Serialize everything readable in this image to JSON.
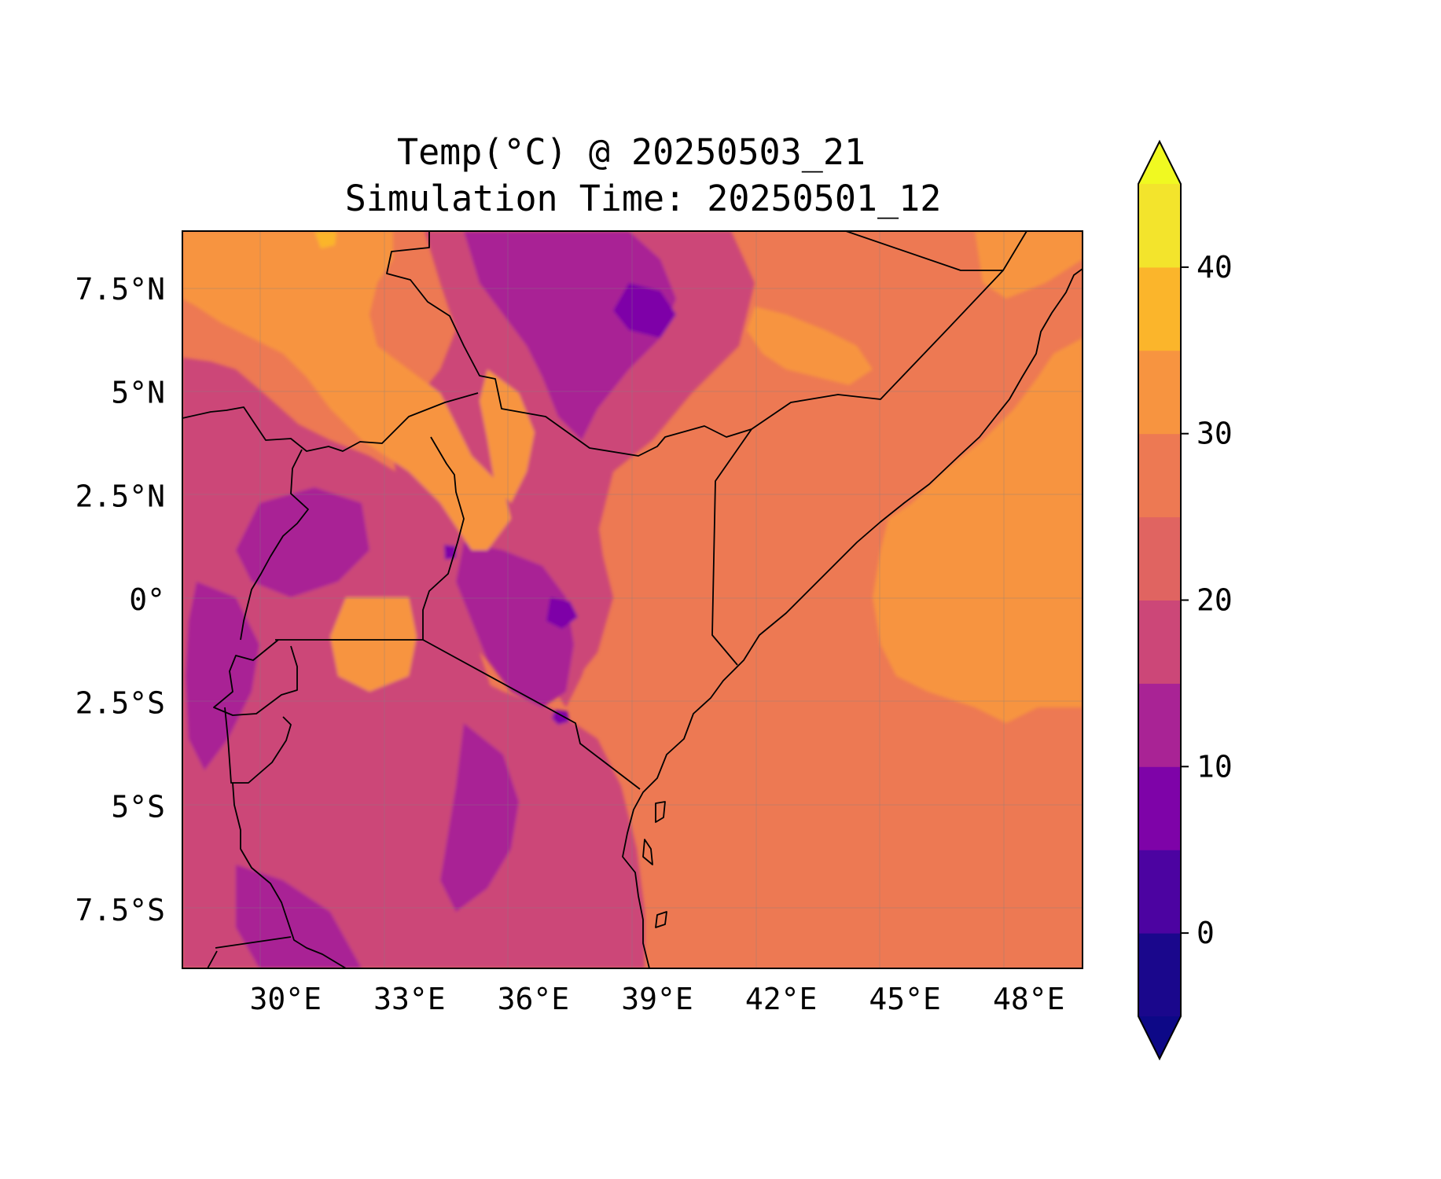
{
  "title": {
    "line1": "Temp(°C) @ 20250503_21",
    "line2": "Simulation Time: 20250501_12"
  },
  "map": {
    "lon_range": [
      27.5,
      49.3
    ],
    "lat_range": [
      -8.9,
      8.9
    ],
    "x_ticks": [
      {
        "lon": 30,
        "label": "30°E"
      },
      {
        "lon": 33,
        "label": "33°E"
      },
      {
        "lon": 36,
        "label": "36°E"
      },
      {
        "lon": 39,
        "label": "39°E"
      },
      {
        "lon": 42,
        "label": "42°E"
      },
      {
        "lon": 45,
        "label": "45°E"
      },
      {
        "lon": 48,
        "label": "48°E"
      }
    ],
    "y_ticks": [
      {
        "lat": 7.5,
        "label": "7.5°N"
      },
      {
        "lat": 5,
        "label": "5°N"
      },
      {
        "lat": 2.5,
        "label": "2.5°N"
      },
      {
        "lat": 0,
        "label": "0°"
      },
      {
        "lat": -2.5,
        "label": "2.5°S"
      },
      {
        "lat": -5,
        "label": "5°S"
      },
      {
        "lat": -7.5,
        "label": "7.5°S"
      }
    ],
    "gridlines": true
  },
  "colorbar": {
    "levels": [
      -5,
      0,
      5,
      10,
      15,
      20,
      25,
      30,
      35,
      40,
      45
    ],
    "colors": [
      "#1a078c",
      "#4c03a1",
      "#7e03a8",
      "#a92395",
      "#cc4778",
      "#e06461",
      "#ed7953",
      "#f79440",
      "#fbb52b",
      "#f3e42c"
    ],
    "extend_under_color": "#0d0887",
    "extend_over_color": "#f0f921",
    "ticks": [
      {
        "value": 0,
        "label": "0"
      },
      {
        "value": 10,
        "label": "10"
      },
      {
        "value": 20,
        "label": "20"
      },
      {
        "value": 30,
        "label": "30"
      },
      {
        "value": 40,
        "label": "40"
      }
    ]
  },
  "base_color": "#ed7953",
  "palette": {
    "deep_purple": "#7e03a8",
    "purple": "#a92395",
    "magenta": "#cc4778",
    "orange": "#f79440",
    "amber": "#fbb52b"
  }
}
